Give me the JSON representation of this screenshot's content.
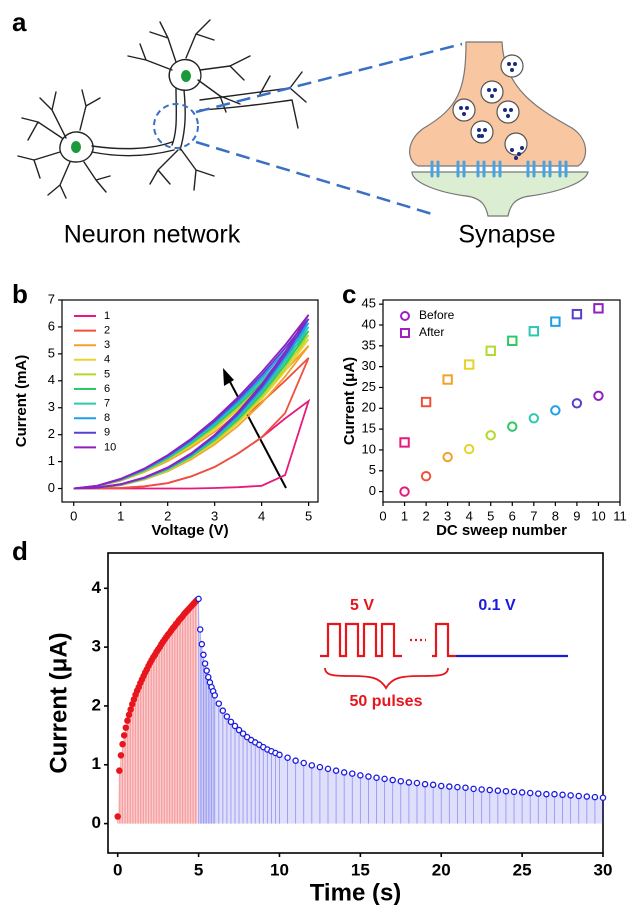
{
  "panel_a": {
    "label": "a",
    "captions": [
      "Neuron network",
      "Synapse"
    ]
  },
  "chart_data": [
    {
      "type": "line",
      "label": "b",
      "xlabel": "Voltage (V)",
      "ylabel": "Current (mA)",
      "x": [
        0,
        0.5,
        1,
        1.5,
        2,
        2.5,
        3,
        3.5,
        4,
        4.5,
        5,
        4.5,
        4,
        3.5,
        3,
        2.5,
        2,
        1.5,
        1,
        0.5,
        0
      ],
      "xlim": [
        -0.25,
        5.2
      ],
      "xticks": [
        0,
        1,
        2,
        3,
        4,
        5
      ],
      "ylim": [
        -0.5,
        7
      ],
      "yticks": [
        0,
        1,
        2,
        3,
        4,
        5,
        6,
        7
      ],
      "legend": "upper-left",
      "series": [
        {
          "name": "1",
          "color": "#e8197c",
          "values": [
            0,
            0,
            0,
            0,
            0,
            0,
            0.02,
            0.05,
            0.1,
            0.5,
            3.25,
            2.6,
            1.9,
            1.3,
            0.8,
            0.45,
            0.2,
            0.08,
            0.02,
            0,
            0
          ]
        },
        {
          "name": "2",
          "color": "#f0503a",
          "values": [
            0,
            0,
            0.02,
            0.08,
            0.2,
            0.45,
            0.8,
            1.3,
            1.9,
            2.8,
            4.85,
            4.0,
            3.2,
            2.5,
            1.8,
            1.2,
            0.7,
            0.35,
            0.12,
            0.02,
            0
          ]
        },
        {
          "name": "3",
          "color": "#f4a02c",
          "values": [
            0,
            0.03,
            0.13,
            0.33,
            0.64,
            1.08,
            1.64,
            2.33,
            3.17,
            4.16,
            5.3,
            4.38,
            3.55,
            2.79,
            2.11,
            1.52,
            1.02,
            0.61,
            0.29,
            0.08,
            0
          ]
        },
        {
          "name": "4",
          "color": "#e8d22c",
          "values": [
            0,
            0.03,
            0.14,
            0.35,
            0.67,
            1.13,
            1.71,
            2.44,
            3.32,
            4.36,
            5.55,
            4.59,
            3.71,
            2.92,
            2.21,
            1.59,
            1.07,
            0.64,
            0.31,
            0.09,
            0
          ]
        },
        {
          "name": "5",
          "color": "#b4d830",
          "values": [
            0,
            0.03,
            0.14,
            0.36,
            0.69,
            1.16,
            1.76,
            2.51,
            3.41,
            4.47,
            5.7,
            4.71,
            3.81,
            3.0,
            2.27,
            1.64,
            1.09,
            0.65,
            0.31,
            0.09,
            0
          ]
        },
        {
          "name": "6",
          "color": "#2ec864",
          "values": [
            0,
            0.03,
            0.14,
            0.37,
            0.71,
            1.19,
            1.81,
            2.57,
            3.5,
            4.59,
            5.85,
            4.84,
            3.91,
            3.08,
            2.33,
            1.68,
            1.12,
            0.67,
            0.32,
            0.09,
            0
          ]
        },
        {
          "name": "7",
          "color": "#2cc8b4",
          "values": [
            0,
            0.03,
            0.15,
            0.38,
            0.73,
            1.22,
            1.85,
            2.64,
            3.59,
            4.71,
            6.0,
            4.96,
            4.01,
            3.16,
            2.39,
            1.72,
            1.15,
            0.69,
            0.33,
            0.09,
            0
          ]
        },
        {
          "name": "8",
          "color": "#1ea0e8",
          "values": [
            0,
            0.03,
            0.15,
            0.39,
            0.75,
            1.25,
            1.9,
            2.71,
            3.68,
            4.83,
            6.15,
            5.09,
            4.11,
            3.23,
            2.45,
            1.77,
            1.18,
            0.7,
            0.34,
            0.1,
            0
          ]
        },
        {
          "name": "9",
          "color": "#5a3ed0",
          "values": [
            0,
            0.03,
            0.16,
            0.4,
            0.77,
            1.28,
            1.95,
            2.77,
            3.77,
            4.95,
            6.3,
            5.21,
            4.21,
            3.31,
            2.51,
            1.81,
            1.21,
            0.72,
            0.35,
            0.1,
            0
          ]
        },
        {
          "name": "10",
          "color": "#9020c0",
          "values": [
            0,
            0.03,
            0.16,
            0.41,
            0.78,
            1.31,
            1.99,
            2.84,
            3.86,
            5.06,
            6.45,
            5.33,
            4.32,
            3.39,
            2.57,
            1.85,
            1.24,
            0.74,
            0.36,
            0.1,
            0
          ]
        }
      ]
    },
    {
      "type": "scatter",
      "label": "c",
      "xlabel": "DC sweep number",
      "ylabel": "Current (μA)",
      "x": [
        1,
        2,
        3,
        4,
        5,
        6,
        7,
        8,
        9,
        10
      ],
      "xlim": [
        0,
        11
      ],
      "xticks": [
        0,
        1,
        2,
        3,
        4,
        5,
        6,
        7,
        8,
        9,
        10,
        11
      ],
      "ylim": [
        -2.5,
        46
      ],
      "yticks": [
        0,
        5,
        10,
        15,
        20,
        25,
        30,
        35,
        40,
        45
      ],
      "legend": "upper-left",
      "point_colors": [
        "#e8197c",
        "#f0503a",
        "#f4a02c",
        "#e8d22c",
        "#b4d830",
        "#2ec864",
        "#2cc8b4",
        "#1ea0e8",
        "#5a3ed0",
        "#9020c0"
      ],
      "series": [
        {
          "name": "Before",
          "marker": "circle",
          "color": "#a020c0",
          "values": [
            0,
            3.7,
            8.3,
            10.2,
            13.5,
            15.6,
            17.6,
            19.5,
            21.2,
            23
          ]
        },
        {
          "name": "After",
          "marker": "square",
          "color": "#a020c0",
          "values": [
            11.8,
            21.5,
            26.9,
            30.5,
            33.8,
            36.2,
            38.5,
            40.8,
            42.6,
            44
          ]
        }
      ]
    },
    {
      "type": "scatter",
      "label": "d",
      "xlabel": "Time (s)",
      "ylabel": "Current (μA)",
      "xlim": [
        -0.6,
        30
      ],
      "xticks": [
        0,
        5,
        10,
        15,
        20,
        25,
        30
      ],
      "ylim": [
        -0.5,
        4.6
      ],
      "yticks": [
        0,
        1,
        2,
        3,
        4
      ],
      "stem": true,
      "annotations": {
        "high": "5 V",
        "low": "0.1 V",
        "count": "50 pulses"
      },
      "series": [
        {
          "color": "#e8161c",
          "marker": "circle",
          "filled": true,
          "x": [
            0,
            0.1,
            0.2,
            0.3,
            0.4,
            0.5,
            0.6,
            0.7,
            0.8,
            0.9,
            1,
            1.1,
            1.2,
            1.3,
            1.4,
            1.5,
            1.6,
            1.7,
            1.8,
            1.9,
            2,
            2.1,
            2.2,
            2.3,
            2.4,
            2.5,
            2.6,
            2.7,
            2.8,
            2.9,
            3,
            3.1,
            3.2,
            3.3,
            3.4,
            3.5,
            3.6,
            3.7,
            3.8,
            3.9,
            4,
            4.1,
            4.2,
            4.3,
            4.4,
            4.5,
            4.6,
            4.7,
            4.8,
            4.9
          ],
          "values": [
            0.12,
            0.9,
            1.16,
            1.35,
            1.5,
            1.63,
            1.75,
            1.85,
            1.94,
            2.03,
            2.11,
            2.19,
            2.26,
            2.32,
            2.39,
            2.45,
            2.51,
            2.57,
            2.62,
            2.68,
            2.73,
            2.78,
            2.83,
            2.87,
            2.92,
            2.96,
            3.0,
            3.05,
            3.09,
            3.13,
            3.17,
            3.21,
            3.24,
            3.28,
            3.32,
            3.35,
            3.39,
            3.42,
            3.46,
            3.49,
            3.52,
            3.56,
            3.59,
            3.62,
            3.65,
            3.68,
            3.71,
            3.74,
            3.77,
            3.8
          ]
        },
        {
          "color": "#1a1ae0",
          "marker": "circle",
          "filled": false,
          "x": [
            5,
            5.1,
            5.2,
            5.3,
            5.4,
            5.5,
            5.6,
            5.7,
            5.8,
            5.9,
            6,
            6.25,
            6.5,
            6.75,
            7,
            7.25,
            7.5,
            7.75,
            8,
            8.25,
            8.5,
            8.75,
            9,
            9.25,
            9.5,
            9.75,
            10,
            10.5,
            11,
            11.5,
            12,
            12.5,
            13,
            13.5,
            14,
            14.5,
            15,
            15.5,
            16,
            16.5,
            17,
            17.5,
            18,
            18.5,
            19,
            19.5,
            20,
            20.5,
            21,
            21.5,
            22,
            22.5,
            23,
            23.5,
            24,
            24.5,
            25,
            25.5,
            26,
            26.5,
            27,
            27.5,
            28,
            28.5,
            29,
            29.5,
            30
          ],
          "values": [
            3.82,
            3.3,
            3.05,
            2.87,
            2.72,
            2.6,
            2.49,
            2.4,
            2.32,
            2.25,
            2.18,
            2.04,
            1.92,
            1.82,
            1.73,
            1.66,
            1.59,
            1.53,
            1.47,
            1.42,
            1.38,
            1.34,
            1.3,
            1.26,
            1.23,
            1.2,
            1.17,
            1.12,
            1.07,
            1.03,
            0.99,
            0.96,
            0.93,
            0.9,
            0.87,
            0.85,
            0.82,
            0.8,
            0.78,
            0.76,
            0.74,
            0.72,
            0.7,
            0.69,
            0.67,
            0.66,
            0.64,
            0.63,
            0.62,
            0.61,
            0.59,
            0.58,
            0.57,
            0.56,
            0.55,
            0.54,
            0.53,
            0.52,
            0.51,
            0.5,
            0.5,
            0.49,
            0.48,
            0.47,
            0.46,
            0.45,
            0.44
          ]
        }
      ]
    }
  ]
}
